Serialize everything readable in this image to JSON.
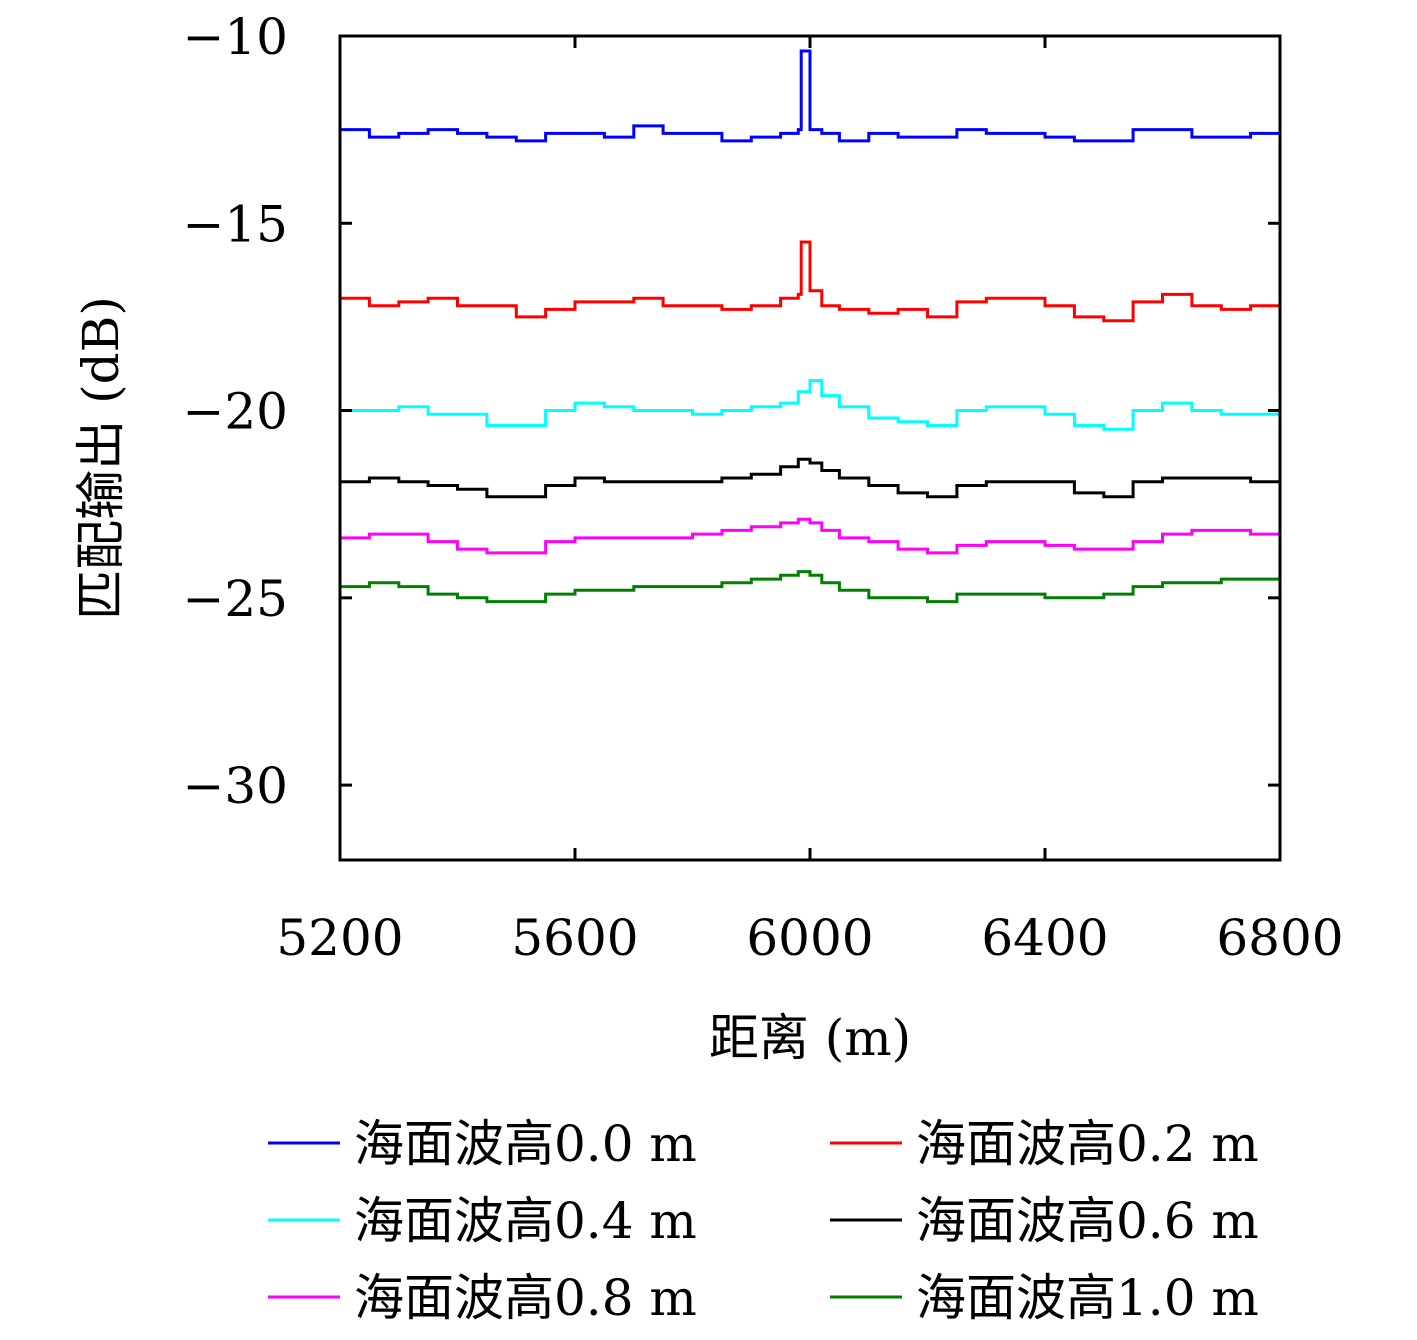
{
  "chart_data": {
    "type": "line",
    "xlabel": "距离 (m)",
    "ylabel": "匹配输出 (dB)",
    "xlim": [
      5200,
      6800
    ],
    "ylim": [
      -32,
      -10
    ],
    "xticks": [
      5200,
      5600,
      6000,
      6400,
      6800
    ],
    "yticks": [
      -10,
      -15,
      -20,
      -25,
      -30
    ],
    "xtick_labels": [
      "5200",
      "5600",
      "6000",
      "6400",
      "6800"
    ],
    "ytick_labels": [
      "−10",
      "−15",
      "−20",
      "−25",
      "−30"
    ],
    "grid": false,
    "legend_position": "bottom",
    "series": [
      {
        "name": "海面波高0.0 m",
        "color": "#0000ff",
        "x": [
          5200,
          5250,
          5300,
          5350,
          5400,
          5450,
          5500,
          5550,
          5600,
          5650,
          5700,
          5750,
          5800,
          5850,
          5900,
          5950,
          5980,
          5985,
          5995,
          6000,
          6020,
          6050,
          6100,
          6150,
          6200,
          6250,
          6300,
          6350,
          6400,
          6450,
          6500,
          6550,
          6600,
          6650,
          6700,
          6750,
          6800
        ],
        "y": [
          -12.5,
          -12.7,
          -12.6,
          -12.5,
          -12.6,
          -12.7,
          -12.8,
          -12.6,
          -12.6,
          -12.7,
          -12.4,
          -12.6,
          -12.6,
          -12.8,
          -12.7,
          -12.6,
          -12.5,
          -10.4,
          -10.4,
          -12.5,
          -12.6,
          -12.8,
          -12.6,
          -12.7,
          -12.7,
          -12.5,
          -12.6,
          -12.6,
          -12.7,
          -12.8,
          -12.8,
          -12.5,
          -12.5,
          -12.7,
          -12.7,
          -12.6,
          -12.6
        ]
      },
      {
        "name": "海面波高0.2 m",
        "color": "#ff0000",
        "x": [
          5200,
          5250,
          5300,
          5350,
          5400,
          5450,
          5500,
          5550,
          5600,
          5650,
          5700,
          5750,
          5800,
          5850,
          5900,
          5950,
          5980,
          5985,
          5995,
          6000,
          6020,
          6050,
          6100,
          6150,
          6200,
          6250,
          6300,
          6350,
          6400,
          6450,
          6500,
          6550,
          6600,
          6650,
          6700,
          6750,
          6800
        ],
        "y": [
          -17.0,
          -17.2,
          -17.1,
          -17.0,
          -17.2,
          -17.2,
          -17.5,
          -17.3,
          -17.1,
          -17.1,
          -17.0,
          -17.2,
          -17.2,
          -17.3,
          -17.2,
          -17.0,
          -16.9,
          -15.5,
          -15.5,
          -16.8,
          -17.2,
          -17.3,
          -17.4,
          -17.3,
          -17.5,
          -17.1,
          -17.0,
          -17.0,
          -17.2,
          -17.5,
          -17.6,
          -17.1,
          -16.9,
          -17.2,
          -17.3,
          -17.2,
          -17.2
        ]
      },
      {
        "name": "海面波高0.4 m",
        "color": "#00ffff",
        "x": [
          5200,
          5250,
          5300,
          5350,
          5400,
          5450,
          5500,
          5550,
          5600,
          5650,
          5700,
          5750,
          5800,
          5850,
          5900,
          5950,
          5980,
          6000,
          6020,
          6050,
          6100,
          6150,
          6200,
          6250,
          6300,
          6350,
          6400,
          6450,
          6500,
          6550,
          6600,
          6650,
          6700,
          6750,
          6800
        ],
        "y": [
          -20.0,
          -20.0,
          -19.9,
          -20.1,
          -20.1,
          -20.4,
          -20.4,
          -20.0,
          -19.8,
          -19.9,
          -20.0,
          -20.0,
          -20.1,
          -20.0,
          -19.9,
          -19.8,
          -19.5,
          -19.2,
          -19.6,
          -19.9,
          -20.2,
          -20.3,
          -20.4,
          -20.0,
          -19.9,
          -19.9,
          -20.1,
          -20.4,
          -20.5,
          -20.0,
          -19.8,
          -20.0,
          -20.1,
          -20.1,
          -20.2
        ]
      },
      {
        "name": "海面波高0.6 m",
        "color": "#000000",
        "x": [
          5200,
          5250,
          5300,
          5350,
          5400,
          5450,
          5500,
          5550,
          5600,
          5650,
          5700,
          5750,
          5800,
          5850,
          5900,
          5950,
          5980,
          6000,
          6020,
          6050,
          6100,
          6150,
          6200,
          6250,
          6300,
          6350,
          6400,
          6450,
          6500,
          6550,
          6600,
          6650,
          6700,
          6750,
          6800
        ],
        "y": [
          -21.9,
          -21.8,
          -21.9,
          -22.0,
          -22.1,
          -22.3,
          -22.3,
          -22.0,
          -21.8,
          -21.9,
          -21.9,
          -21.9,
          -21.9,
          -21.8,
          -21.7,
          -21.5,
          -21.3,
          -21.4,
          -21.6,
          -21.8,
          -22.0,
          -22.2,
          -22.3,
          -22.0,
          -21.9,
          -21.9,
          -21.9,
          -22.2,
          -22.3,
          -21.9,
          -21.8,
          -21.8,
          -21.8,
          -21.9,
          -22.0
        ]
      },
      {
        "name": "海面波高0.8 m",
        "color": "#ff00ff",
        "x": [
          5200,
          5250,
          5300,
          5350,
          5400,
          5450,
          5500,
          5550,
          5600,
          5650,
          5700,
          5750,
          5800,
          5850,
          5900,
          5950,
          5980,
          6000,
          6020,
          6050,
          6100,
          6150,
          6200,
          6250,
          6300,
          6350,
          6400,
          6450,
          6500,
          6550,
          6600,
          6650,
          6700,
          6750,
          6800
        ],
        "y": [
          -23.4,
          -23.3,
          -23.3,
          -23.5,
          -23.7,
          -23.8,
          -23.8,
          -23.5,
          -23.4,
          -23.4,
          -23.4,
          -23.4,
          -23.3,
          -23.2,
          -23.1,
          -23.0,
          -22.9,
          -23.0,
          -23.2,
          -23.4,
          -23.5,
          -23.7,
          -23.8,
          -23.6,
          -23.5,
          -23.5,
          -23.6,
          -23.7,
          -23.7,
          -23.5,
          -23.3,
          -23.2,
          -23.2,
          -23.3,
          -23.4
        ]
      },
      {
        "name": "海面波高1.0 m",
        "color": "#008000",
        "x": [
          5200,
          5250,
          5300,
          5350,
          5400,
          5450,
          5500,
          5550,
          5600,
          5650,
          5700,
          5750,
          5800,
          5850,
          5900,
          5950,
          5980,
          6000,
          6020,
          6050,
          6100,
          6150,
          6200,
          6250,
          6300,
          6350,
          6400,
          6450,
          6500,
          6550,
          6600,
          6650,
          6700,
          6750,
          6800
        ],
        "y": [
          -24.7,
          -24.6,
          -24.7,
          -24.9,
          -25.0,
          -25.1,
          -25.1,
          -24.9,
          -24.8,
          -24.8,
          -24.7,
          -24.7,
          -24.7,
          -24.6,
          -24.5,
          -24.4,
          -24.3,
          -24.4,
          -24.6,
          -24.8,
          -25.0,
          -25.0,
          -25.1,
          -24.9,
          -24.9,
          -24.9,
          -25.0,
          -25.0,
          -24.9,
          -24.7,
          -24.6,
          -24.6,
          -24.5,
          -24.5,
          -24.6
        ]
      }
    ]
  }
}
